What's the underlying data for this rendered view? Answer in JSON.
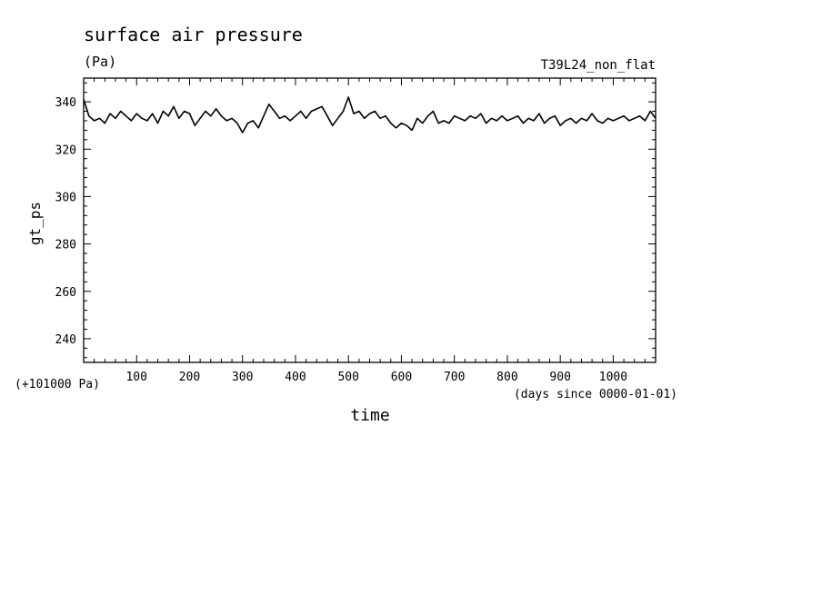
{
  "chart_data": {
    "type": "line",
    "title": "surface air pressure",
    "units": "(Pa)",
    "experiment": "T39L24_non_flat",
    "xlabel": "time",
    "xunits": "(days since 0000-01-01)",
    "ylabel": "gt_ps",
    "yoffset": "(+101000 Pa)",
    "xlim": [
      0,
      1080
    ],
    "ylim": [
      230,
      350
    ],
    "xticks": [
      100,
      200,
      300,
      400,
      500,
      600,
      700,
      800,
      900,
      1000
    ],
    "yticks": [
      240,
      260,
      280,
      300,
      320,
      340
    ],
    "grid": false,
    "series": [
      {
        "color": "#000000",
        "x": [
          0,
          10,
          20,
          30,
          40,
          50,
          60,
          70,
          80,
          90,
          100,
          110,
          120,
          130,
          140,
          150,
          160,
          170,
          180,
          190,
          200,
          210,
          220,
          230,
          240,
          250,
          260,
          270,
          280,
          290,
          300,
          310,
          320,
          330,
          340,
          350,
          360,
          370,
          380,
          390,
          400,
          410,
          420,
          430,
          440,
          450,
          460,
          470,
          480,
          490,
          500,
          510,
          520,
          530,
          540,
          550,
          560,
          570,
          580,
          590,
          600,
          610,
          620,
          630,
          640,
          650,
          660,
          670,
          680,
          690,
          700,
          710,
          720,
          730,
          740,
          750,
          760,
          770,
          780,
          790,
          800,
          810,
          820,
          830,
          840,
          850,
          860,
          870,
          880,
          890,
          900,
          910,
          920,
          930,
          940,
          950,
          960,
          970,
          980,
          990,
          1000,
          1010,
          1020,
          1030,
          1040,
          1050,
          1060,
          1070,
          1080
        ],
        "values": [
          341,
          334,
          332,
          333,
          331,
          335,
          333,
          336,
          334,
          332,
          335,
          333,
          332,
          335,
          331,
          336,
          334,
          338,
          333,
          336,
          335,
          330,
          333,
          336,
          334,
          337,
          334,
          332,
          333,
          331,
          327,
          331,
          332,
          329,
          334,
          339,
          336,
          333,
          334,
          332,
          334,
          336,
          333,
          336,
          337,
          338,
          334,
          330,
          333,
          336,
          342,
          335,
          336,
          333,
          335,
          336,
          333,
          334,
          331,
          329,
          331,
          330,
          328,
          333,
          331,
          334,
          336,
          331,
          332,
          331,
          334,
          333,
          332,
          334,
          333,
          335,
          331,
          333,
          332,
          334,
          332,
          333,
          334,
          331,
          333,
          332,
          335,
          331,
          333,
          334,
          330,
          332,
          333,
          331,
          333,
          332,
          335,
          332,
          331,
          333,
          332,
          333,
          334,
          332,
          333,
          334,
          332,
          336,
          333
        ]
      }
    ]
  }
}
